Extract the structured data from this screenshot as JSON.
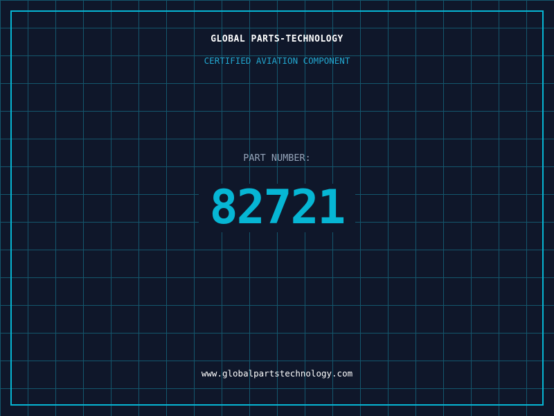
{
  "header": {
    "company": "GLOBAL PARTS-TECHNOLOGY",
    "subtitle": "CERTIFIED AVIATION COMPONENT"
  },
  "part": {
    "label": "PART NUMBER:",
    "number": "82721"
  },
  "footer": {
    "url": "www.globalpartstechnology.com"
  },
  "colors": {
    "background": "#0f172a",
    "accent": "#06b6d4",
    "grid": "#155e75"
  }
}
